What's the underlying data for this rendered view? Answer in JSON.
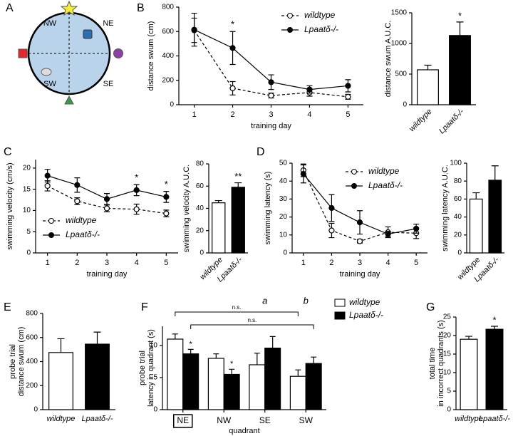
{
  "diagram": {
    "panel": "A",
    "labels": [
      "NW",
      "NE",
      "SW",
      "SE"
    ]
  },
  "chart_data": [
    {
      "panel": "B",
      "type": "line",
      "ylabel": [
        "distance swum (cm)"
      ],
      "xlabel": "training day",
      "x": [
        1,
        2,
        3,
        4,
        5
      ],
      "xlim": [
        0.6,
        5.4
      ],
      "xticks": [
        1,
        2,
        3,
        4,
        5
      ],
      "ylim": [
        0,
        800
      ],
      "yticks": [
        0,
        200,
        400,
        600,
        800
      ],
      "legend": "top-right",
      "series": [
        {
          "name": "wildtype",
          "color": "#000000",
          "marker_fill": "#ffffff",
          "dashed": true,
          "values": [
            610,
            135,
            75,
            100,
            65
          ],
          "errors": [
            100,
            55,
            20,
            30,
            20
          ]
        },
        {
          "name": "Lpaatδ-/-",
          "color": "#000000",
          "marker_fill": "#000000",
          "dashed": false,
          "values": [
            615,
            465,
            185,
            125,
            155
          ],
          "errors": [
            135,
            135,
            60,
            30,
            50
          ]
        }
      ],
      "annotations": [
        {
          "text": "*",
          "x": 2
        }
      ]
    },
    {
      "type": "bar",
      "ylabel": [
        "distance swum A.U.C."
      ],
      "categories": [
        "wildtype",
        "Lpaatδ-/-"
      ],
      "values": [
        570,
        1130
      ],
      "errors": [
        75,
        220
      ],
      "colors": [
        "#ffffff",
        "#000000"
      ],
      "ylim": [
        0,
        1500
      ],
      "yticks": [
        0,
        500,
        1000,
        1500
      ],
      "rotated_labels": true,
      "annotations": [
        {
          "text": "*",
          "category": "Lpaatδ-/-"
        }
      ]
    },
    {
      "panel": "C",
      "type": "line",
      "ylabel": [
        "swimming velocity (cm/s)"
      ],
      "xlabel": "training day",
      "x": [
        1,
        2,
        3,
        4,
        5
      ],
      "xlim": [
        0.6,
        5.4
      ],
      "xticks": [
        1,
        2,
        3,
        4,
        5
      ],
      "ylim": [
        0,
        22
      ],
      "yticks": [
        0,
        5,
        10,
        15,
        20
      ],
      "legend": "bottom-left",
      "series": [
        {
          "name": "wildtype",
          "color": "#000000",
          "marker_fill": "#ffffff",
          "dashed": true,
          "values": [
            15.8,
            12.2,
            10.5,
            10.3,
            9.3
          ],
          "errors": [
            1.2,
            0.8,
            0.8,
            1.2,
            0.8
          ]
        },
        {
          "name": "Lpaatδ-/-",
          "color": "#000000",
          "marker_fill": "#000000",
          "dashed": false,
          "values": [
            18.2,
            16,
            12.7,
            14.8,
            13.2
          ],
          "errors": [
            1.5,
            1.7,
            1.3,
            1.3,
            1.3
          ]
        }
      ],
      "annotations": [
        {
          "text": "*",
          "x": 4
        },
        {
          "text": "*",
          "x": 5
        }
      ]
    },
    {
      "type": "bar",
      "ylabel": [
        "swimming velocity A.U.C."
      ],
      "categories": [
        "wildtype",
        "Lpaatδ-/-"
      ],
      "values": [
        45,
        59
      ],
      "errors": [
        2,
        4
      ],
      "colors": [
        "#ffffff",
        "#000000"
      ],
      "ylim": [
        0,
        80
      ],
      "yticks": [
        0,
        20,
        40,
        60,
        80
      ],
      "rotated_labels": true,
      "annotations": [
        {
          "text": "**",
          "category": "Lpaatδ-/-"
        }
      ]
    },
    {
      "panel": "D",
      "type": "line",
      "ylabel": [
        "swimming latency (s)"
      ],
      "xlabel": "training day",
      "x": [
        1,
        2,
        3,
        4,
        5
      ],
      "xlim": [
        0.6,
        5.4
      ],
      "xticks": [
        1,
        2,
        3,
        4,
        5
      ],
      "ylim": [
        0,
        50
      ],
      "yticks": [
        0,
        10,
        20,
        30,
        40,
        50
      ],
      "legend": "top-right",
      "series": [
        {
          "name": "wildtype",
          "color": "#000000",
          "marker_fill": "#ffffff",
          "dashed": true,
          "values": [
            46,
            12.5,
            6.5,
            11.5,
            11
          ],
          "errors": [
            3.5,
            4,
            1,
            3,
            3
          ]
        },
        {
          "name": "Lpaatδ-/-",
          "color": "#000000",
          "marker_fill": "#000000",
          "dashed": false,
          "values": [
            44,
            25,
            17,
            10.5,
            13.5
          ],
          "errors": [
            5,
            7.5,
            6.5,
            1.5,
            2.5
          ]
        }
      ]
    },
    {
      "type": "bar",
      "ylabel": [
        "swimming latency A.U.C."
      ],
      "categories": [
        "wildtype",
        "Lpaatδ-/-"
      ],
      "values": [
        60,
        81
      ],
      "errors": [
        7,
        16
      ],
      "colors": [
        "#ffffff",
        "#000000"
      ],
      "ylim": [
        0,
        100
      ],
      "yticks": [
        0,
        20,
        40,
        60,
        80,
        100
      ],
      "rotated_labels": true
    },
    {
      "panel": "E",
      "type": "bar",
      "ylabel": [
        "probe trial",
        "distance swum (cm)"
      ],
      "categories": [
        "wildtype",
        "Lpaatδ-/-"
      ],
      "values": [
        475,
        545
      ],
      "errors": [
        115,
        100
      ],
      "colors": [
        "#ffffff",
        "#000000"
      ],
      "ylim": [
        0,
        800
      ],
      "yticks": [
        0,
        200,
        400,
        600,
        800
      ],
      "rotated_labels": false
    },
    {
      "panel": "F",
      "type": "bar",
      "ylabel": [
        "probe trial",
        "latency in quadrant (s)"
      ],
      "xlabel": "quadrant",
      "categories": [
        "NE",
        "NW",
        "SE",
        "SW"
      ],
      "boxed_category": "NE",
      "ylim": [
        0,
        13
      ],
      "yticks": [
        0,
        5,
        10
      ],
      "legend": "right",
      "series": [
        {
          "name": "wildtype",
          "color": "#ffffff",
          "values": [
            11,
            8,
            7,
            5.2
          ],
          "errors": [
            0.8,
            0.7,
            1.8,
            1
          ]
        },
        {
          "name": "Lpaatδ-/-",
          "color": "#000000",
          "values": [
            8.7,
            5.5,
            9.6,
            7.2
          ],
          "errors": [
            0.7,
            0.8,
            1.8,
            1
          ]
        }
      ],
      "annotations": [
        {
          "text": "n.s.",
          "from": "NE",
          "to": "SW",
          "series": "wildtype"
        },
        {
          "text": "n.s.",
          "from": "NE",
          "to": "SW",
          "series": "Lpaatδ-/-"
        },
        {
          "text": "*",
          "category": "NE",
          "series": "Lpaatδ-/-"
        },
        {
          "text": "*",
          "category": "NW",
          "series": "Lpaatδ-/-"
        },
        {
          "text": "a",
          "category": "SE"
        },
        {
          "text": "b",
          "category": "SW"
        }
      ]
    },
    {
      "panel": "G",
      "type": "bar",
      "ylabel": [
        "total time",
        "in incorrect quadrants (s)"
      ],
      "categories": [
        "wildtype",
        "Lpaatδ-/-"
      ],
      "values": [
        19,
        21.7
      ],
      "errors": [
        0.8,
        0.8
      ],
      "colors": [
        "#ffffff",
        "#000000"
      ],
      "ylim": [
        0,
        25
      ],
      "yticks": [
        0,
        5,
        10,
        15,
        20,
        25
      ],
      "rotated_labels": false,
      "annotations": [
        {
          "text": "*",
          "category": "Lpaatδ-/-"
        }
      ]
    }
  ]
}
